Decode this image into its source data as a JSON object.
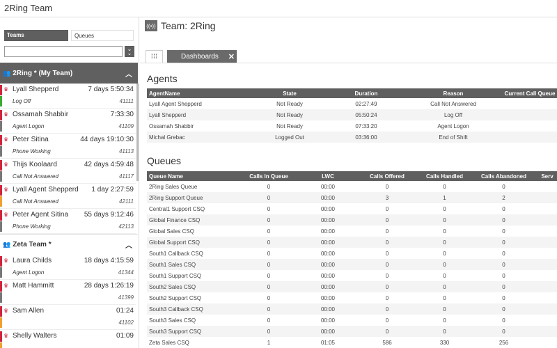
{
  "app": {
    "title": "2Ring Team"
  },
  "sidebar": {
    "tabs": {
      "teams": "Teams",
      "queues": "Queues"
    },
    "search": {
      "value": "",
      "placeholder": ""
    },
    "teams": [
      {
        "name": "2Ring * (My Team)",
        "agents": [
          {
            "name": "Lyall Shepperd",
            "time": "7 days 5:50:34",
            "status": "Log Off",
            "ext": "41111",
            "status_color": "#3aaa35"
          },
          {
            "name": "Ossamah Shabbir",
            "time": "7:33:30",
            "status": "Agent Logon",
            "ext": "41109",
            "status_color": "#777777"
          },
          {
            "name": "Peter Sitina",
            "time": "44 days 19:10:30",
            "status": "Phone Working",
            "ext": "41113",
            "status_color": "#777777"
          },
          {
            "name": "Thijs Koolaard",
            "time": "42 days 4:59:48",
            "status": "Call Not Answered",
            "ext": "41117",
            "status_color": "#777777"
          },
          {
            "name": "Lyall Agent Shepperd",
            "time": "1 day 2:27:59",
            "status": "Call Not Answered",
            "ext": "42111",
            "status_color": "#f0a030"
          },
          {
            "name": "Peter Agent Sitina",
            "time": "55 days 9:12:46",
            "status": "Phone Working",
            "ext": "42113",
            "status_color": "#777777"
          }
        ]
      },
      {
        "name": "Zeta Team *",
        "agents": [
          {
            "name": "Laura Childs",
            "time": "18 days 4:15:59",
            "status": "Agent Logon",
            "ext": "41344",
            "status_color": "#777777"
          },
          {
            "name": "Matt Hammitt",
            "time": "28 days 1:26:19",
            "status": "",
            "ext": "41399",
            "status_color": "#777777"
          },
          {
            "name": "Sam Allen",
            "time": "01:24",
            "status": "",
            "ext": "41102",
            "status_color": "#f0a030"
          },
          {
            "name": "Shelly Walters",
            "time": "01:09",
            "status": "",
            "ext": "",
            "status_color": "#f0a030"
          }
        ]
      }
    ]
  },
  "main": {
    "team_title": "Team: 2Ring",
    "tabs": {
      "dashboards": "Dashboards"
    },
    "agents": {
      "title": "Agents",
      "headers": [
        "AgentName",
        "State",
        "Duration",
        "Reason",
        "Current Call Queue"
      ],
      "rows": [
        [
          "Lyall Agent Shepperd",
          "Not Ready",
          "02:27:49",
          "Call Not Answered",
          ""
        ],
        [
          "Lyall Shepperd",
          "Not Ready",
          "05:50:24",
          "Log Off",
          ""
        ],
        [
          "Ossamah Shabbir",
          "Not Ready",
          "07:33:20",
          "Agent Logon",
          ""
        ],
        [
          "Michal Grebac",
          "Logged Out",
          "03:36:00",
          "End of Shift",
          ""
        ]
      ]
    },
    "queues": {
      "title": "Queues",
      "headers": [
        "Queue Name",
        "Calls In Queue",
        "LWC",
        "Calls Offered",
        "Calls Handled",
        "Calls Abandoned",
        "Serv"
      ],
      "rows": [
        [
          "2Ring Sales Queue",
          "0",
          "00:00",
          "0",
          "0",
          "0",
          ""
        ],
        [
          "2Ring Support Queue",
          "0",
          "00:00",
          "3",
          "1",
          "2",
          ""
        ],
        [
          "Central1 Support CSQ",
          "0",
          "00:00",
          "0",
          "0",
          "0",
          ""
        ],
        [
          "Global Finance CSQ",
          "0",
          "00:00",
          "0",
          "0",
          "0",
          ""
        ],
        [
          "Global Sales CSQ",
          "0",
          "00:00",
          "0",
          "0",
          "0",
          ""
        ],
        [
          "Global Support CSQ",
          "0",
          "00:00",
          "0",
          "0",
          "0",
          ""
        ],
        [
          "South1 Callback CSQ",
          "0",
          "00:00",
          "0",
          "0",
          "0",
          ""
        ],
        [
          "South1 Sales CSQ",
          "0",
          "00:00",
          "0",
          "0",
          "0",
          ""
        ],
        [
          "South1 Support CSQ",
          "0",
          "00:00",
          "0",
          "0",
          "0",
          ""
        ],
        [
          "South2 Sales CSQ",
          "0",
          "00:00",
          "0",
          "0",
          "0",
          ""
        ],
        [
          "South2 Support CSQ",
          "0",
          "00:00",
          "0",
          "0",
          "0",
          ""
        ],
        [
          "South3 Callback CSQ",
          "0",
          "00:00",
          "0",
          "0",
          "0",
          ""
        ],
        [
          "South3 Sales CSQ",
          "0",
          "00:00",
          "0",
          "0",
          "0",
          ""
        ],
        [
          "South3 Support CSQ",
          "0",
          "00:00",
          "0",
          "0",
          "0",
          ""
        ],
        [
          "Zeta Sales CSQ",
          "1",
          "01:05",
          "586",
          "330",
          "256",
          ""
        ]
      ]
    }
  }
}
